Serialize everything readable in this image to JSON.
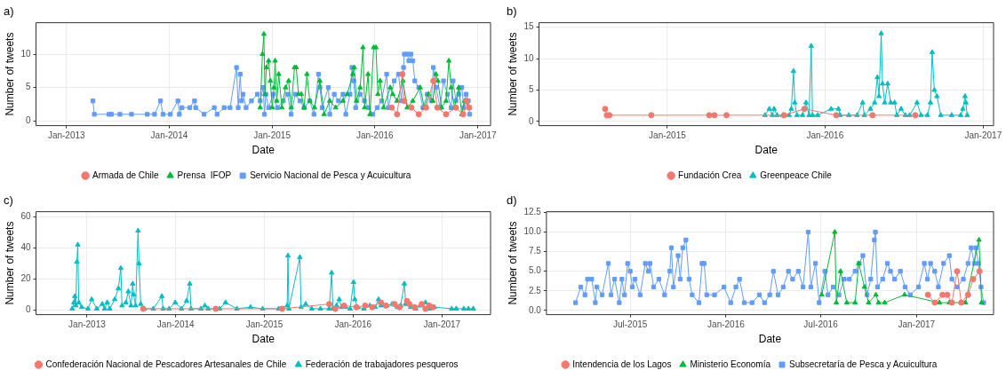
{
  "chart_data": [
    {
      "type": "line",
      "title": "a)",
      "xlabel": "Date",
      "ylabel": "Number of tweets",
      "xlim": [
        "2012-09-15",
        "2017-02-15"
      ],
      "xticks": [
        {
          "value": "2013-01-01",
          "label": "Jan-2013"
        },
        {
          "value": "2014-01-01",
          "label": "Jan-2014"
        },
        {
          "value": "2015-01-01",
          "label": "Jan-2015"
        },
        {
          "value": "2016-01-01",
          "label": "Jan-2016"
        },
        {
          "value": "2017-01-01",
          "label": "Jan-2017"
        }
      ],
      "ylim": [
        -0.7,
        14.7
      ],
      "yticks": [
        0,
        5,
        10
      ],
      "grid": true,
      "legend": "bottom",
      "series": [
        {
          "name": "Armada de Chile",
          "color": "#f8766d",
          "marker": "circle",
          "x": [
            "2016-03-01",
            "2016-03-20",
            "2016-04-08",
            "2016-04-15",
            "2016-05-10",
            "2016-06-05",
            "2016-07-01",
            "2016-07-27",
            "2016-08-10",
            "2016-09-10",
            "2016-10-15",
            "2016-11-10",
            "2016-11-22",
            "2016-12-01"
          ],
          "values": [
            2,
            1,
            7,
            3,
            2,
            1,
            2,
            6,
            2,
            1,
            2,
            1,
            3,
            2
          ]
        },
        {
          "name": "Prensa  IFOP",
          "color": "#00ba38",
          "marker": "triangle",
          "x": [
            "2014-11-20",
            "2014-11-28",
            "2014-12-03",
            "2014-12-07",
            "2014-12-12",
            "2014-12-20",
            "2014-12-26",
            "2015-01-02",
            "2015-01-08",
            "2015-01-12",
            "2015-01-18",
            "2015-01-25",
            "2015-02-05",
            "2015-02-18",
            "2015-03-01",
            "2015-03-10",
            "2015-03-22",
            "2015-03-28",
            "2015-04-05",
            "2015-04-15",
            "2015-04-25",
            "2015-05-05",
            "2015-05-15",
            "2015-06-01",
            "2015-06-20",
            "2015-07-05",
            "2015-07-25",
            "2015-08-15",
            "2015-09-10",
            "2015-09-25",
            "2015-10-15",
            "2015-10-20",
            "2015-10-28",
            "2015-11-10",
            "2015-11-20",
            "2015-11-26",
            "2015-12-08",
            "2015-12-15",
            "2015-12-28",
            "2016-01-05",
            "2016-01-12",
            "2016-01-20",
            "2016-02-01",
            "2016-02-25",
            "2016-03-05",
            "2016-03-20",
            "2016-04-10",
            "2016-04-25",
            "2016-05-15",
            "2016-06-10",
            "2016-06-25",
            "2016-07-10",
            "2016-07-25",
            "2016-08-05",
            "2016-08-12",
            "2016-08-25",
            "2016-09-10",
            "2016-09-20",
            "2016-09-28",
            "2016-10-10",
            "2016-10-25",
            "2016-11-05",
            "2016-11-15",
            "2016-12-01"
          ],
          "values": [
            2,
            10,
            13,
            4,
            8,
            9,
            6,
            2,
            5,
            9,
            3,
            7,
            2,
            5,
            6,
            2,
            8,
            8,
            4,
            4,
            2,
            7,
            3,
            2,
            6,
            1,
            3,
            2,
            3,
            4,
            7,
            8,
            3,
            5,
            11,
            2,
            7,
            1,
            11,
            11,
            4,
            6,
            2,
            5,
            4,
            3,
            6,
            2,
            3,
            5,
            2,
            4,
            3,
            7,
            6,
            2,
            3,
            9,
            5,
            2,
            5,
            1,
            3,
            2
          ]
        },
        {
          "name": "Servicio Nacional de Pesca y Acuicultura",
          "color": "#619cff",
          "marker": "square",
          "x": [
            "2013-04-05",
            "2013-04-10",
            "2013-06-01",
            "2013-06-10",
            "2013-07-10",
            "2013-08-20",
            "2013-10-15",
            "2013-11-10",
            "2013-12-01",
            "2013-12-10",
            "2014-01-05",
            "2014-02-01",
            "2014-02-06",
            "2014-02-15",
            "2014-03-15",
            "2014-04-01",
            "2014-04-05",
            "2014-05-05",
            "2014-06-10",
            "2014-06-20",
            "2014-07-15",
            "2014-08-05",
            "2014-08-28",
            "2014-09-03",
            "2014-09-10",
            "2014-09-15",
            "2014-09-20",
            "2014-10-01",
            "2014-10-20",
            "2014-11-10",
            "2014-11-20",
            "2014-12-01",
            "2014-12-05",
            "2014-12-10",
            "2014-12-20",
            "2015-01-05",
            "2015-01-20",
            "2015-02-10",
            "2015-02-25",
            "2015-03-10",
            "2015-03-25",
            "2015-04-10",
            "2015-04-25",
            "2015-05-15",
            "2015-05-30",
            "2015-06-15",
            "2015-06-20",
            "2015-06-28",
            "2015-07-20",
            "2015-07-25",
            "2015-08-10",
            "2015-08-25",
            "2015-09-10",
            "2015-09-20",
            "2015-10-05",
            "2015-10-12",
            "2015-10-18",
            "2015-10-25",
            "2015-11-10",
            "2015-11-25",
            "2015-12-10",
            "2015-12-25",
            "2016-01-10",
            "2016-01-25",
            "2016-02-12",
            "2016-02-18",
            "2016-03-10",
            "2016-03-25",
            "2016-04-05",
            "2016-04-12",
            "2016-04-15",
            "2016-04-25",
            "2016-05-01",
            "2016-05-08",
            "2016-05-15",
            "2016-05-22",
            "2016-06-05",
            "2016-06-20",
            "2016-07-05",
            "2016-07-20",
            "2016-07-27",
            "2016-08-05",
            "2016-08-20",
            "2016-09-01",
            "2016-09-15",
            "2016-09-28",
            "2016-10-05",
            "2016-10-15",
            "2016-10-25",
            "2016-11-05",
            "2016-11-12",
            "2016-11-20",
            "2016-11-28",
            "2016-12-03"
          ],
          "values": [
            3,
            1,
            1,
            1,
            1,
            1,
            1,
            1,
            3,
            1,
            1,
            3,
            1,
            2,
            2,
            3,
            2,
            1,
            2,
            1,
            2,
            2,
            8,
            2,
            7,
            3,
            4,
            2,
            3,
            4,
            3,
            5,
            1,
            4,
            2,
            4,
            2,
            3,
            4,
            1,
            4,
            3,
            2,
            3,
            1,
            7,
            5,
            2,
            5,
            1,
            4,
            3,
            4,
            1,
            4,
            8,
            6,
            2,
            4,
            3,
            2,
            1,
            2,
            3,
            7,
            2,
            6,
            7,
            3,
            8,
            10,
            10,
            9,
            10,
            9,
            6,
            5,
            2,
            4,
            3,
            8,
            5,
            2,
            6,
            4,
            2,
            6,
            3,
            4,
            5,
            2,
            4,
            3,
            1
          ]
        }
      ]
    },
    {
      "type": "line",
      "title": "b)",
      "xlabel": "Date",
      "ylabel": "Number of tweets",
      "xlim": [
        "2014-03-10",
        "2017-01-25"
      ],
      "xticks": [
        {
          "value": "2015-01-01",
          "label": "Jan-2015"
        },
        {
          "value": "2016-01-01",
          "label": "Jan-2016"
        },
        {
          "value": "2017-01-01",
          "label": "Jan-2017"
        }
      ],
      "ylim": [
        -0.66,
        15.7
      ],
      "yticks": [
        0,
        5,
        10,
        15
      ],
      "grid": true,
      "legend": "bottom",
      "series": [
        {
          "name": "Fundación Crea",
          "color": "#f8766d",
          "marker": "circle",
          "x": [
            "2014-08-10",
            "2014-08-14",
            "2014-08-20",
            "2014-11-25",
            "2015-04-08",
            "2015-04-20",
            "2015-05-18",
            "2015-09-28",
            "2015-11-14",
            "2016-01-27",
            "2016-04-20",
            "2016-07-28"
          ],
          "values": [
            2,
            1,
            1,
            1,
            1,
            1,
            1,
            1,
            2,
            1,
            1,
            1
          ]
        },
        {
          "name": "Greenpeace Chile",
          "color": "#00bfc4",
          "marker": "triangle",
          "x": [
            "2015-08-15",
            "2015-08-25",
            "2015-09-01",
            "2015-09-05",
            "2015-09-12",
            "2015-09-25",
            "2015-10-10",
            "2015-10-15",
            "2015-10-20",
            "2015-10-23",
            "2015-10-28",
            "2015-11-10",
            "2015-11-18",
            "2015-11-25",
            "2015-11-30",
            "2015-12-03",
            "2015-12-15",
            "2016-01-15",
            "2016-02-01",
            "2016-02-05",
            "2016-02-25",
            "2016-03-15",
            "2016-03-28",
            "2016-04-01",
            "2016-04-15",
            "2016-04-25",
            "2016-05-01",
            "2016-05-05",
            "2016-05-10",
            "2016-05-13",
            "2016-05-18",
            "2016-05-25",
            "2016-06-01",
            "2016-06-10",
            "2016-06-15",
            "2016-06-25",
            "2016-07-05",
            "2016-07-15",
            "2016-08-01",
            "2016-08-10",
            "2016-08-25",
            "2016-09-01",
            "2016-09-05",
            "2016-09-10",
            "2016-09-16",
            "2016-09-25",
            "2016-10-20",
            "2016-11-10",
            "2016-11-15",
            "2016-11-20",
            "2016-11-22",
            "2016-11-25"
          ],
          "values": [
            1,
            2,
            1,
            2,
            1,
            1,
            1,
            2,
            8,
            3,
            1,
            1,
            3,
            1,
            12,
            1,
            1,
            2,
            2,
            1,
            1,
            1,
            3,
            1,
            2,
            3,
            7,
            4,
            14,
            6,
            3,
            6,
            3,
            3,
            1,
            2,
            1,
            1,
            3,
            1,
            1,
            3,
            11,
            5,
            4,
            1,
            1,
            1,
            2,
            4,
            3,
            1
          ]
        }
      ]
    },
    {
      "type": "line",
      "title": "c)",
      "xlabel": "Date",
      "ylabel": "Number of tweets",
      "xlim": [
        "2012-06-05",
        "2017-07-20"
      ],
      "xticks": [
        {
          "value": "2013-01-01",
          "label": "Jan-2013"
        },
        {
          "value": "2014-01-01",
          "label": "Jan-2014"
        },
        {
          "value": "2015-01-01",
          "label": "Jan-2015"
        },
        {
          "value": "2016-01-01",
          "label": "Jan-2016"
        },
        {
          "value": "2017-01-01",
          "label": "Jan-2017"
        }
      ],
      "ylim": [
        -2.8,
        63.2
      ],
      "yticks": [
        0,
        20,
        40,
        60
      ],
      "grid": true,
      "legend": "bottom",
      "series": [
        {
          "name": "Confederación Nacional de Pescadores Artesanales de Chile",
          "color": "#f8766d",
          "marker": "circle",
          "x": [
            "2013-08-20",
            "2014-06-15",
            "2015-03-15",
            "2015-09-25",
            "2015-10-20",
            "2015-11-25",
            "2016-01-15",
            "2016-02-20",
            "2016-03-20",
            "2016-04-25",
            "2016-05-15",
            "2016-06-20",
            "2016-07-10",
            "2016-08-10",
            "2016-08-20",
            "2016-09-10",
            "2016-10-10",
            "2016-10-25",
            "2016-11-10",
            "2016-11-25"
          ],
          "values": [
            1,
            1,
            1,
            4,
            1,
            3,
            2,
            3,
            2,
            5,
            3,
            4,
            2,
            6,
            4,
            2,
            4,
            1,
            3,
            2
          ]
        },
        {
          "name": "Federación de trabajadores pesqueros",
          "color": "#00bfc4",
          "marker": "triangle",
          "x": [
            "2012-11-01",
            "2012-11-08",
            "2012-11-12",
            "2012-11-16",
            "2012-11-20",
            "2012-11-24",
            "2012-11-28",
            "2012-12-10",
            "2013-01-05",
            "2013-01-20",
            "2013-02-10",
            "2013-03-05",
            "2013-03-15",
            "2013-03-25",
            "2013-04-05",
            "2013-04-25",
            "2013-05-10",
            "2013-05-20",
            "2013-05-25",
            "2013-06-10",
            "2013-06-20",
            "2013-07-01",
            "2013-07-08",
            "2013-07-12",
            "2013-07-20",
            "2013-07-30",
            "2013-08-03",
            "2013-08-10",
            "2013-08-25",
            "2013-10-01",
            "2013-11-05",
            "2013-11-10",
            "2013-12-05",
            "2013-12-30",
            "2014-01-25",
            "2014-02-15",
            "2014-02-28",
            "2014-03-05",
            "2014-04-15",
            "2014-05-01",
            "2014-05-15",
            "2014-07-01",
            "2014-07-25",
            "2014-09-10",
            "2014-11-05",
            "2014-12-25",
            "2015-03-01",
            "2015-04-05",
            "2015-04-08",
            "2015-04-12",
            "2015-05-27",
            "2015-06-01",
            "2015-06-20",
            "2015-07-15",
            "2015-08-20",
            "2015-09-25",
            "2015-10-05",
            "2015-10-10",
            "2015-10-25",
            "2015-11-05",
            "2015-11-15",
            "2015-12-01",
            "2015-12-20",
            "2016-01-03",
            "2016-01-08",
            "2016-01-20",
            "2016-02-15",
            "2016-03-10",
            "2016-04-01",
            "2016-04-15",
            "2016-04-25",
            "2016-05-20",
            "2016-06-10",
            "2016-07-01",
            "2016-07-15",
            "2016-07-30",
            "2016-08-05",
            "2016-08-25",
            "2016-09-15",
            "2016-10-05",
            "2016-10-25",
            "2016-11-10",
            "2016-12-01",
            "2017-02-10",
            "2017-03-01",
            "2017-04-01",
            "2017-04-20",
            "2017-05-10"
          ],
          "values": [
            1,
            5,
            9,
            3,
            31,
            42,
            5,
            2,
            1,
            7,
            1,
            4,
            1,
            5,
            1,
            7,
            14,
            27,
            3,
            5,
            12,
            3,
            17,
            10,
            3,
            51,
            30,
            4,
            1,
            1,
            9,
            1,
            1,
            5,
            1,
            6,
            17,
            1,
            1,
            3,
            1,
            1,
            5,
            1,
            2,
            1,
            1,
            3,
            35,
            1,
            34,
            2,
            4,
            1,
            1,
            1,
            24,
            1,
            3,
            7,
            2,
            2,
            1,
            18,
            7,
            2,
            1,
            3,
            2,
            7,
            3,
            3,
            4,
            2,
            3,
            17,
            4,
            2,
            1,
            3,
            5,
            1,
            2,
            1,
            1,
            1,
            1,
            1
          ]
        }
      ]
    },
    {
      "type": "line",
      "title": "d)",
      "xlabel": "Date",
      "ylabel": "Number of tweets",
      "xlim": [
        "2015-01-21",
        "2017-05-29"
      ],
      "xticks": [
        {
          "value": "2015-07-01",
          "label": "Jul-2015"
        },
        {
          "value": "2016-01-01",
          "label": "Jan-2016"
        },
        {
          "value": "2016-07-01",
          "label": "Jul-2016"
        },
        {
          "value": "2017-01-01",
          "label": "Jan-2017"
        }
      ],
      "ylim": [
        -0.53,
        12.6
      ],
      "yticks": [
        {
          "value": 0,
          "label": "0.0"
        },
        {
          "value": 2.5,
          "label": "2.5"
        },
        {
          "value": 5,
          "label": "5.0"
        },
        {
          "value": 7.5,
          "label": "7.5"
        },
        {
          "value": 10,
          "label": "10.0"
        },
        {
          "value": 12.5,
          "label": "12.5"
        }
      ],
      "grid": true,
      "legend": "bottom",
      "series": [
        {
          "name": "Intendencia de los Lagos",
          "color": "#f8766d",
          "marker": "circle",
          "x": [
            "2017-01-23",
            "2017-02-05",
            "2017-02-20",
            "2017-03-01",
            "2017-03-10",
            "2017-03-20",
            "2017-03-28",
            "2017-04-10",
            "2017-04-20",
            "2017-05-02"
          ],
          "values": [
            2,
            1,
            2,
            2,
            1,
            5,
            1,
            2,
            4,
            5
          ]
        },
        {
          "name": "Ministerio Economía",
          "color": "#00ba38",
          "marker": "triangle",
          "x": [
            "2016-07-03",
            "2016-07-28",
            "2016-07-31",
            "2016-08-08",
            "2016-08-20",
            "2016-09-05",
            "2016-09-12",
            "2016-09-23",
            "2016-10-01",
            "2016-10-15",
            "2016-10-20",
            "2016-11-01",
            "2016-12-09",
            "2017-02-14",
            "2017-03-05",
            "2017-04-05",
            "2017-05-01",
            "2017-05-06"
          ],
          "values": [
            2,
            10,
            1,
            5,
            1,
            1,
            6,
            3,
            1,
            2,
            1,
            1,
            2,
            1,
            1,
            1,
            9,
            1
          ]
        },
        {
          "name": "Subsecretaría de Pesca y Acuicultura",
          "color": "#619cff",
          "marker": "square",
          "x": [
            "2015-03-18",
            "2015-03-28",
            "2015-04-05",
            "2015-04-10",
            "2015-04-18",
            "2015-04-25",
            "2015-04-28",
            "2015-05-08",
            "2015-05-20",
            "2015-05-25",
            "2015-06-01",
            "2015-06-10",
            "2015-06-15",
            "2015-06-20",
            "2015-06-26",
            "2015-07-01",
            "2015-07-05",
            "2015-07-10",
            "2015-07-20",
            "2015-07-30",
            "2015-08-05",
            "2015-08-08",
            "2015-08-15",
            "2015-08-25",
            "2015-09-05",
            "2015-09-15",
            "2015-09-18",
            "2015-09-22",
            "2015-10-01",
            "2015-10-05",
            "2015-10-10",
            "2015-10-16",
            "2015-10-22",
            "2015-10-28",
            "2015-11-10",
            "2015-11-16",
            "2015-11-20",
            "2015-11-25",
            "2015-12-10",
            "2015-12-28",
            "2016-01-10",
            "2016-01-20",
            "2016-01-27",
            "2016-02-05",
            "2016-02-20",
            "2016-03-05",
            "2016-03-15",
            "2016-03-25",
            "2016-04-01",
            "2016-04-10",
            "2016-04-20",
            "2016-04-30",
            "2016-05-08",
            "2016-05-19",
            "2016-05-28",
            "2016-06-07",
            "2016-06-12",
            "2016-06-21",
            "2016-06-28",
            "2016-07-09",
            "2016-07-15",
            "2016-07-25",
            "2016-08-05",
            "2016-08-15",
            "2016-08-25",
            "2016-09-05",
            "2016-09-13",
            "2016-09-20",
            "2016-09-28",
            "2016-10-05",
            "2016-10-12",
            "2016-10-14",
            "2016-10-18",
            "2016-10-28",
            "2016-11-06",
            "2016-11-12",
            "2016-11-20",
            "2016-12-01",
            "2016-12-10",
            "2016-12-20",
            "2017-01-05",
            "2017-01-16",
            "2017-01-22",
            "2017-01-28",
            "2017-02-05",
            "2017-02-12",
            "2017-02-22",
            "2017-03-05",
            "2017-03-10",
            "2017-03-20",
            "2017-04-01",
            "2017-04-10",
            "2017-04-16",
            "2017-04-22",
            "2017-04-25",
            "2017-04-30",
            "2017-05-05",
            "2017-05-10"
          ],
          "values": [
            1,
            3,
            2,
            4,
            4,
            1,
            3,
            2,
            6,
            2,
            4,
            1,
            4,
            2,
            6,
            5,
            3,
            4,
            2,
            6,
            5,
            6,
            3,
            4,
            2,
            5,
            8,
            3,
            7,
            4,
            8,
            9,
            4,
            2,
            1,
            6,
            6,
            2,
            2,
            3,
            1,
            3,
            4,
            1,
            1,
            2,
            1,
            2,
            5,
            2,
            3,
            5,
            4,
            5,
            3,
            10,
            3,
            6,
            1,
            5,
            2,
            3,
            2,
            4,
            4,
            5,
            6,
            7,
            2,
            4,
            9,
            10,
            3,
            4,
            6,
            5,
            4,
            5,
            3,
            2,
            3,
            6,
            4,
            6,
            5,
            3,
            6,
            7,
            4,
            3,
            4,
            6,
            8,
            6,
            8,
            6,
            3,
            1
          ]
        }
      ]
    }
  ]
}
